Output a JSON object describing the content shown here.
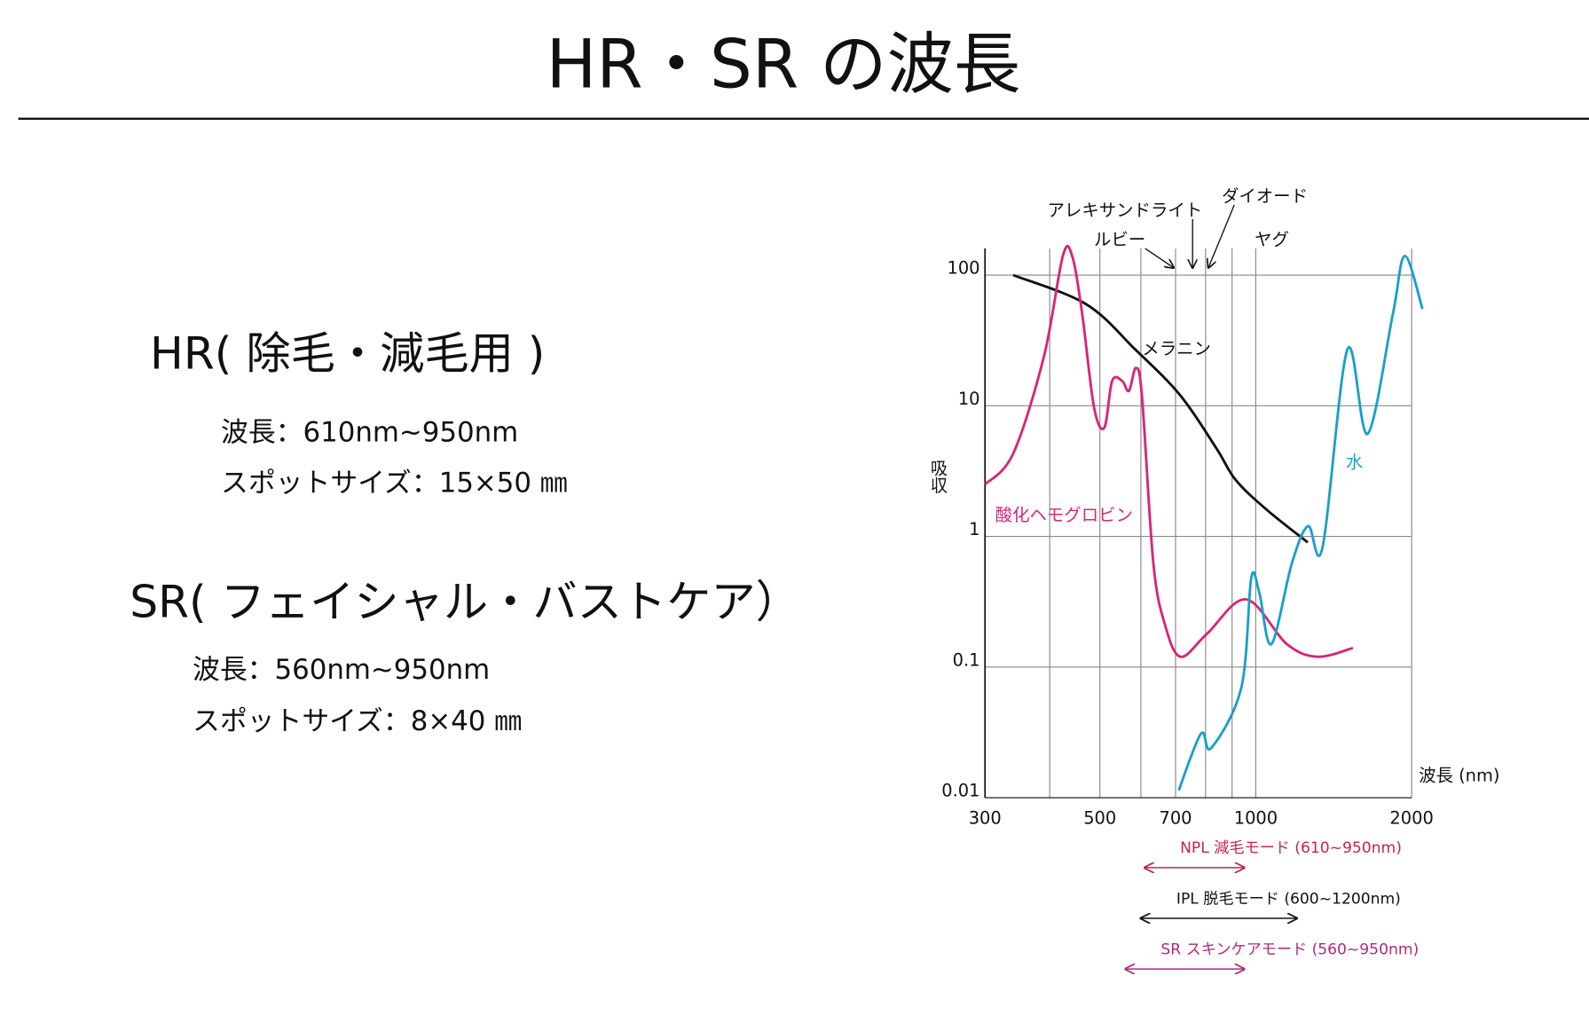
{
  "header": {
    "title": "HR・SR の波長"
  },
  "sections": [
    {
      "heading": "HR( 除毛・減毛用 )",
      "lines": [
        "波長：610nm~950nm",
        "スポットサイズ：15×50 ㎜"
      ]
    },
    {
      "heading": "SR( フェイシャル・バストケア）",
      "lines": [
        "波長：560nm~950nm",
        "スポットサイズ：8×40 ㎜"
      ]
    }
  ],
  "chart_data": {
    "type": "line",
    "x_label": "波長 (nm)",
    "y_label": "吸収",
    "log_x": true,
    "log_y": true,
    "grid": true,
    "xlim": [
      300,
      2000
    ],
    "xticks": [
      300,
      500,
      700,
      1000,
      2000
    ],
    "x_minor_grid": [
      400,
      600,
      800,
      900
    ],
    "ylim": [
      0.01,
      160
    ],
    "yticks": [
      0.01,
      0.1,
      1,
      10,
      100
    ],
    "series": [
      {
        "name": "メラニン",
        "color": "#111111",
        "x": [
          340,
          470,
          585,
          715,
          840,
          915,
          1050,
          1260
        ],
        "values": [
          100,
          60,
          27,
          12,
          4.7,
          2.7,
          1.6,
          0.9
        ]
      },
      {
        "name": "酸化ヘモグロビン",
        "color": "#d8257a",
        "x": [
          300,
          340,
          390,
          424,
          442,
          462,
          487,
          510,
          528,
          552,
          569,
          587,
          603,
          634,
          668,
          716,
          805,
          958,
          1148,
          1316,
          1540
        ],
        "values": [
          2.5,
          4.3,
          24,
          140,
          140,
          51,
          9.8,
          6.8,
          15.5,
          15.5,
          13,
          19.5,
          11.7,
          0.63,
          0.21,
          0.12,
          0.18,
          0.33,
          0.15,
          0.12,
          0.14
        ]
      },
      {
        "name": "水",
        "color": "#1aa0c8",
        "x": [
          710,
          784,
          820,
          938,
          980,
          1016,
          1072,
          1175,
          1262,
          1346,
          1503,
          1644,
          1839,
          1940,
          2099
        ],
        "values": [
          0.0114,
          0.031,
          0.024,
          0.07,
          0.48,
          0.37,
          0.15,
          0.63,
          1.2,
          0.83,
          27,
          6.1,
          50,
          140,
          55
        ]
      }
    ],
    "lasers": [
      {
        "name": "ルビー",
        "wavelength": 694
      },
      {
        "name": "アレキサンドライト",
        "wavelength": 755
      },
      {
        "name": "ダイオード",
        "wavelength": 810
      },
      {
        "name": "ヤグ",
        "wavelength": 1064
      }
    ],
    "ranges": [
      {
        "label": "NPL 減毛モード (610~950nm)",
        "from": 610,
        "to": 950,
        "color": "#c8234a"
      },
      {
        "label": "IPL 脱毛モード (600~1200nm)",
        "from": 600,
        "to": 1200,
        "color": "#111111"
      },
      {
        "label": "SR スキンケアモード (560~950nm)",
        "from": 560,
        "to": 950,
        "color": "#b02a7a"
      }
    ]
  }
}
